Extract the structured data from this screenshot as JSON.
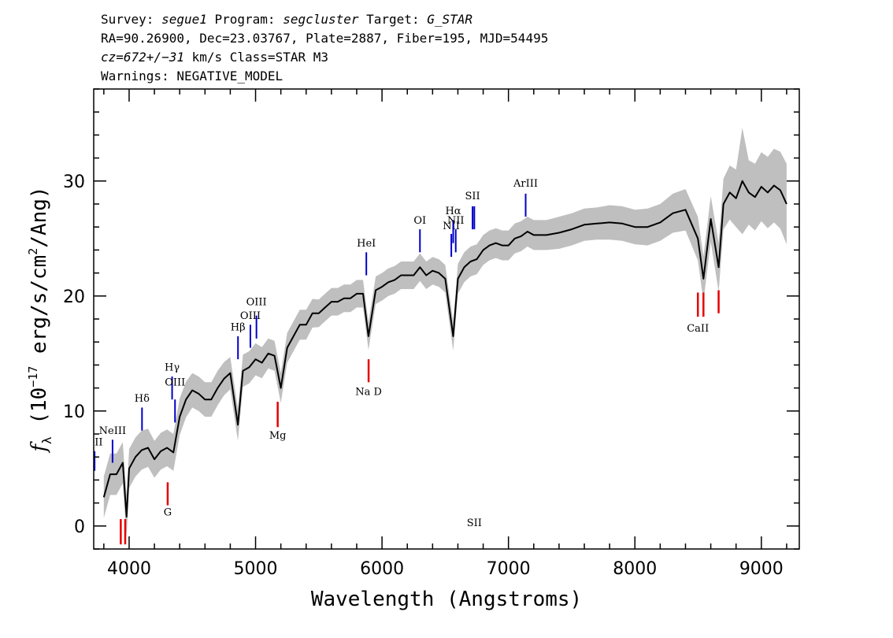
{
  "header": {
    "line1": {
      "survey_label": "Survey: ",
      "survey": "segue1",
      "program_label": " Program: ",
      "program": "segcluster",
      "target_label": " Target: ",
      "target": "G_STAR"
    },
    "line2": "RA=90.26900, Dec=23.03767, Plate=2887, Fiber=195, MJD=54495",
    "line3": {
      "cz": "cz=672+/−31",
      "rest": " km/s Class=STAR M3"
    },
    "line4": "Warnings: NEGATIVE_MODEL"
  },
  "chart_data": {
    "type": "line",
    "xlabel": "Wavelength (Angstroms)",
    "ylabel": {
      "f": "f",
      "sub": "λ",
      "pre": "(10",
      "exp": "−17",
      "mid": " erg/s/cm",
      "exp2": "2",
      "post": "/Ang)"
    },
    "xlim": [
      3720,
      9300
    ],
    "ylim": [
      -2,
      38
    ],
    "xticks": [
      4000,
      5000,
      6000,
      7000,
      8000,
      9000
    ],
    "yticks": [
      0,
      10,
      20,
      30
    ],
    "series": [
      {
        "role": "flux",
        "color": "#000000",
        "x": [
          3800,
          3850,
          3900,
          3950,
          3980,
          4000,
          4050,
          4100,
          4150,
          4200,
          4250,
          4300,
          4350,
          4400,
          4450,
          4500,
          4550,
          4600,
          4650,
          4700,
          4750,
          4800,
          4860,
          4900,
          4950,
          5000,
          5050,
          5100,
          5150,
          5200,
          5250,
          5300,
          5350,
          5400,
          5450,
          5500,
          5550,
          5600,
          5650,
          5700,
          5750,
          5800,
          5850,
          5893,
          5950,
          6000,
          6050,
          6100,
          6150,
          6200,
          6250,
          6300,
          6350,
          6400,
          6450,
          6500,
          6563,
          6600,
          6650,
          6700,
          6750,
          6800,
          6850,
          6900,
          6950,
          7000,
          7050,
          7100,
          7150,
          7200,
          7300,
          7400,
          7500,
          7600,
          7700,
          7800,
          7900,
          8000,
          8100,
          8200,
          8300,
          8400,
          8498,
          8542,
          8600,
          8662,
          8700,
          8750,
          8800,
          8850,
          8900,
          8950,
          9000,
          9050,
          9100,
          9150,
          9200
        ],
        "y": [
          2.5,
          4.5,
          4.5,
          5.5,
          0.8,
          5.0,
          6.0,
          6.6,
          6.8,
          5.8,
          6.5,
          6.8,
          6.4,
          9.5,
          11.0,
          11.8,
          11.5,
          11.0,
          11.0,
          12.0,
          12.8,
          13.3,
          8.8,
          13.5,
          13.8,
          14.5,
          14.2,
          15.0,
          14.8,
          12.0,
          15.5,
          16.5,
          17.5,
          17.5,
          18.5,
          18.5,
          19.0,
          19.5,
          19.5,
          19.8,
          19.8,
          20.2,
          20.2,
          16.5,
          20.5,
          20.8,
          21.2,
          21.4,
          21.8,
          21.8,
          21.8,
          22.5,
          21.8,
          22.2,
          22.0,
          21.5,
          16.5,
          21.5,
          22.5,
          23.0,
          23.2,
          24.0,
          24.4,
          24.6,
          24.4,
          24.4,
          25.0,
          25.2,
          25.6,
          25.3,
          25.3,
          25.5,
          25.8,
          26.2,
          26.3,
          26.4,
          26.3,
          26.0,
          26.0,
          26.4,
          27.2,
          27.5,
          25.0,
          21.5,
          26.7,
          22.5,
          28.0,
          29.0,
          28.5,
          30.0,
          29.0,
          28.6,
          29.5,
          29.0,
          29.6,
          29.2,
          28.0
        ]
      },
      {
        "role": "error",
        "color": "#bfbfbf",
        "x": [
          3800,
          3850,
          3900,
          3950,
          4000,
          4100,
          4200,
          4300,
          4400,
          4500,
          4600,
          4700,
          4800,
          4900,
          5000,
          5100,
          5200,
          5300,
          5400,
          5500,
          5600,
          5700,
          5800,
          5900,
          6000,
          6100,
          6200,
          6300,
          6400,
          6500,
          6600,
          6700,
          6800,
          6900,
          7000,
          7100,
          7200,
          7300,
          7400,
          7500,
          7600,
          7700,
          7800,
          7900,
          8000,
          8100,
          8200,
          8300,
          8400,
          8500,
          8600,
          8700,
          8800,
          8840,
          8900,
          9000,
          9100,
          9200
        ],
        "y": [
          1.8,
          1.8,
          1.8,
          1.8,
          1.7,
          1.7,
          1.6,
          1.6,
          1.6,
          1.5,
          1.5,
          1.5,
          1.4,
          1.4,
          1.4,
          1.3,
          1.3,
          1.3,
          1.3,
          1.2,
          1.2,
          1.2,
          1.2,
          1.2,
          1.2,
          1.2,
          1.2,
          1.2,
          1.2,
          1.2,
          1.3,
          1.3,
          1.3,
          1.3,
          1.3,
          1.3,
          1.3,
          1.3,
          1.4,
          1.4,
          1.4,
          1.4,
          1.5,
          1.5,
          1.5,
          1.6,
          1.6,
          1.7,
          1.8,
          1.9,
          2.0,
          2.2,
          2.5,
          5.0,
          2.8,
          3.0,
          3.2,
          3.5
        ]
      }
    ],
    "emission_lines": [
      {
        "label": "OII",
        "x": 3727,
        "y0": 4.8,
        "y1": 6.5,
        "label_y": 7.0,
        "color": "#0000c8"
      },
      {
        "label": "NeIII",
        "x": 3869,
        "y0": 5.5,
        "y1": 7.5,
        "label_y": 8.0,
        "color": "#0000c8"
      },
      {
        "label": "Hδ",
        "x": 4102,
        "y0": 8.3,
        "y1": 10.3,
        "label_y": 10.8,
        "color": "#0000c8"
      },
      {
        "label": "Hγ",
        "x": 4340,
        "y0": 11.0,
        "y1": 13.0,
        "label_y": 13.5,
        "color": "#0000c8"
      },
      {
        "label": "OIII",
        "x": 4363,
        "y0": 9.0,
        "y1": 11.0,
        "label_y": 12.2,
        "color": "#0000c8"
      },
      {
        "label": "Hβ",
        "x": 4861,
        "y0": 14.5,
        "y1": 16.5,
        "label_y": 17.0,
        "color": "#0000c8"
      },
      {
        "label": "OIII",
        "x": 4959,
        "y0": 15.5,
        "y1": 17.5,
        "label_y": 18.0,
        "color": "#0000c8"
      },
      {
        "label": "OIII",
        "x": 5007,
        "y0": 16.3,
        "y1": 18.3,
        "label_y": 19.2,
        "color": "#0000c8"
      },
      {
        "label": "HeI",
        "x": 5876,
        "y0": 21.8,
        "y1": 23.8,
        "label_y": 24.3,
        "color": "#0000c8"
      },
      {
        "label": "OI",
        "x": 6300,
        "y0": 23.8,
        "y1": 25.8,
        "label_y": 26.3,
        "color": "#0000c8"
      },
      {
        "label": "NII",
        "x": 6548,
        "y0": 23.4,
        "y1": 25.4,
        "label_y": 25.8,
        "color": "#0000c8"
      },
      {
        "label": "Hα",
        "x": 6563,
        "y0": 24.6,
        "y1": 26.6,
        "label_y": 27.1,
        "color": "#0000c8"
      },
      {
        "label": "NII",
        "x": 6583,
        "y0": 23.8,
        "y1": 25.8,
        "label_y": 26.3,
        "color": "#0000c8"
      },
      {
        "label": "SII",
        "x": 6716,
        "y0": 25.8,
        "y1": 27.8,
        "label_y": 28.4,
        "color": "#0000c8"
      },
      {
        "label": "SII",
        "x": 6730,
        "y0": 25.8,
        "y1": 27.8,
        "label_y": 0,
        "color": "#0000c8"
      },
      {
        "label": "ArIII",
        "x": 7136,
        "y0": 26.9,
        "y1": 28.9,
        "label_y": 29.5,
        "color": "#0000c8"
      }
    ],
    "absorption_lines": [
      {
        "label": "",
        "x": 3934,
        "y0": -1.6,
        "y1": 0.6,
        "label_y": 0,
        "color": "#e60000"
      },
      {
        "label": "",
        "x": 3969,
        "y0": -1.6,
        "y1": 0.6,
        "label_y": 0,
        "color": "#e60000"
      },
      {
        "label": "G",
        "x": 4305,
        "y0": 1.8,
        "y1": 3.8,
        "label_y": 0.9,
        "color": "#e60000"
      },
      {
        "label": "Mg",
        "x": 5175,
        "y0": 8.6,
        "y1": 10.8,
        "label_y": 7.6,
        "color": "#e60000"
      },
      {
        "label": "Na D",
        "x": 5894,
        "y0": 12.5,
        "y1": 14.5,
        "label_y": 11.4,
        "color": "#e60000"
      },
      {
        "label": "CaII",
        "x": 8498,
        "y0": 18.2,
        "y1": 20.3,
        "label_y": 16.9,
        "color": "#e60000"
      },
      {
        "label": "",
        "x": 8542,
        "y0": 18.2,
        "y1": 20.3,
        "label_y": 0,
        "color": "#e60000"
      },
      {
        "label": "",
        "x": 8662,
        "y0": 18.5,
        "y1": 20.5,
        "label_y": 0,
        "color": "#e60000"
      }
    ],
    "grid": false
  }
}
